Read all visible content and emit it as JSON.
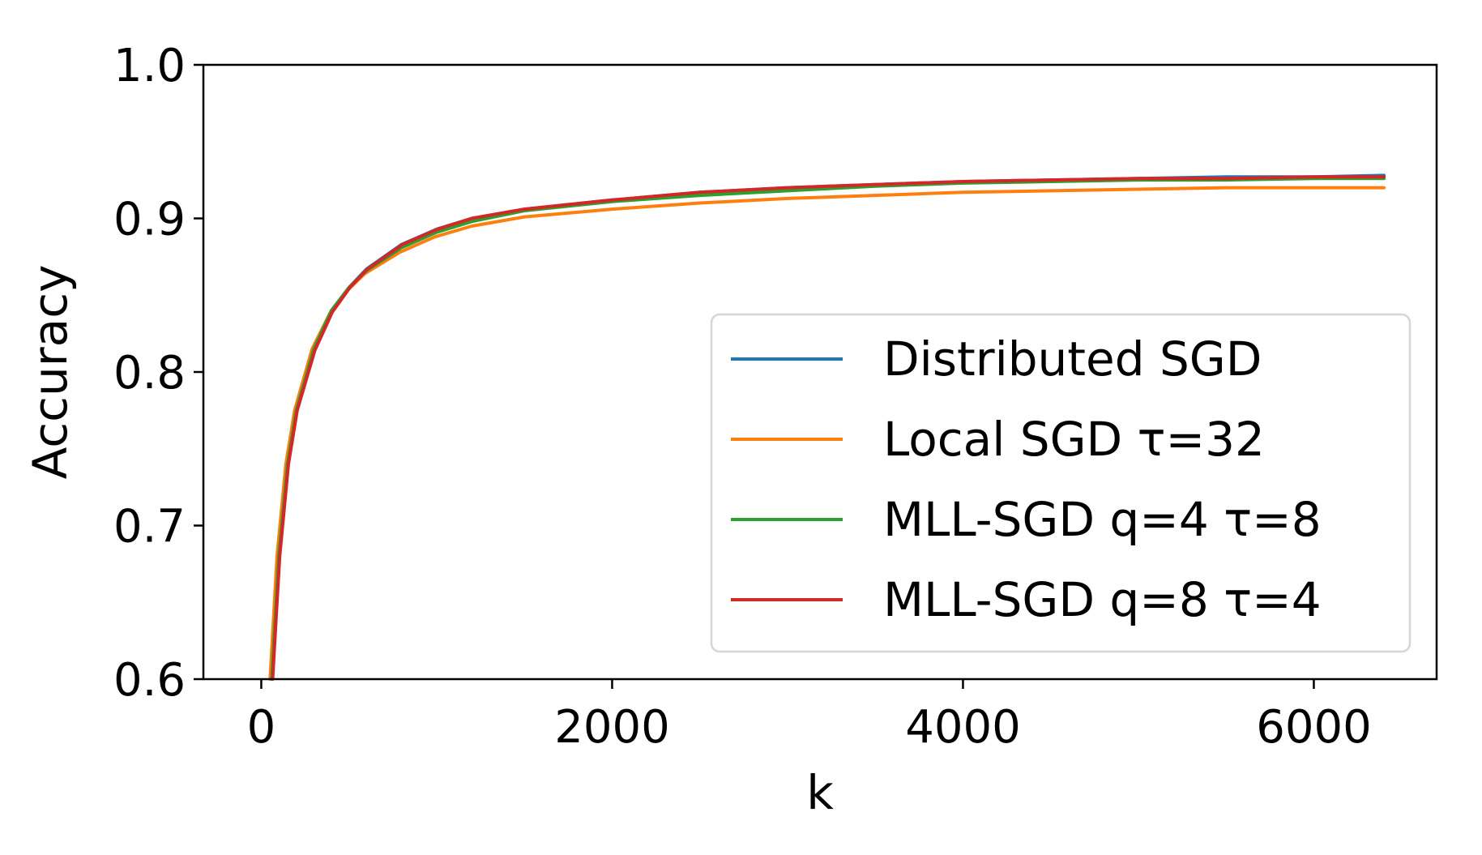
{
  "chart_data": {
    "type": "line",
    "title": "",
    "xlabel": "k",
    "ylabel": "Accuracy",
    "xlim": [
      -330,
      6700
    ],
    "ylim": [
      0.6,
      1.0
    ],
    "xticks": [
      0,
      2000,
      4000,
      6000
    ],
    "xtick_labels": [
      "0",
      "2000",
      "4000",
      "6000"
    ],
    "yticks": [
      0.6,
      0.7,
      0.8,
      0.9,
      1.0
    ],
    "ytick_labels": [
      "0.6",
      "0.7",
      "0.8",
      "0.9",
      "1.0"
    ],
    "grid": false,
    "legend_position": "center-right",
    "series": [
      {
        "name": "Distributed SGD",
        "color": "#1f77b4",
        "x": [
          60,
          80,
          100,
          150,
          200,
          300,
          400,
          500,
          600,
          800,
          1000,
          1200,
          1500,
          2000,
          2500,
          3000,
          3500,
          4000,
          4500,
          5000,
          5500,
          6000,
          6400
        ],
        "y": [
          0.6,
          0.64,
          0.68,
          0.74,
          0.775,
          0.815,
          0.84,
          0.855,
          0.867,
          0.883,
          0.893,
          0.9,
          0.906,
          0.912,
          0.917,
          0.92,
          0.922,
          0.924,
          0.925,
          0.926,
          0.927,
          0.927,
          0.928
        ]
      },
      {
        "name": "Local SGD τ=32",
        "color": "#ff7f0e",
        "x": [
          50,
          70,
          90,
          140,
          190,
          290,
          390,
          490,
          590,
          790,
          990,
          1200,
          1500,
          2000,
          2500,
          3000,
          3500,
          4000,
          4500,
          5000,
          5500,
          6000,
          6400
        ],
        "y": [
          0.6,
          0.64,
          0.68,
          0.74,
          0.775,
          0.815,
          0.838,
          0.853,
          0.864,
          0.878,
          0.888,
          0.895,
          0.901,
          0.906,
          0.91,
          0.913,
          0.915,
          0.917,
          0.918,
          0.919,
          0.92,
          0.92,
          0.92
        ]
      },
      {
        "name": "MLL-SGD q=4 τ=8",
        "color": "#2ca02c",
        "x": [
          60,
          80,
          100,
          150,
          200,
          300,
          400,
          500,
          600,
          800,
          1000,
          1200,
          1500,
          2000,
          2500,
          3000,
          3500,
          4000,
          4500,
          5000,
          5500,
          6000,
          6400
        ],
        "y": [
          0.6,
          0.64,
          0.68,
          0.74,
          0.775,
          0.815,
          0.84,
          0.855,
          0.866,
          0.881,
          0.891,
          0.898,
          0.905,
          0.911,
          0.915,
          0.918,
          0.921,
          0.923,
          0.924,
          0.925,
          0.925,
          0.926,
          0.926
        ]
      },
      {
        "name": "MLL-SGD q=8 τ=4",
        "color": "#d62728",
        "x": [
          65,
          85,
          105,
          155,
          205,
          305,
          405,
          505,
          605,
          805,
          1005,
          1200,
          1500,
          2000,
          2500,
          3000,
          3500,
          4000,
          4500,
          5000,
          5500,
          6000,
          6400
        ],
        "y": [
          0.6,
          0.64,
          0.68,
          0.74,
          0.775,
          0.814,
          0.839,
          0.855,
          0.867,
          0.883,
          0.893,
          0.9,
          0.906,
          0.912,
          0.917,
          0.92,
          0.922,
          0.924,
          0.925,
          0.926,
          0.926,
          0.927,
          0.927
        ]
      }
    ]
  }
}
